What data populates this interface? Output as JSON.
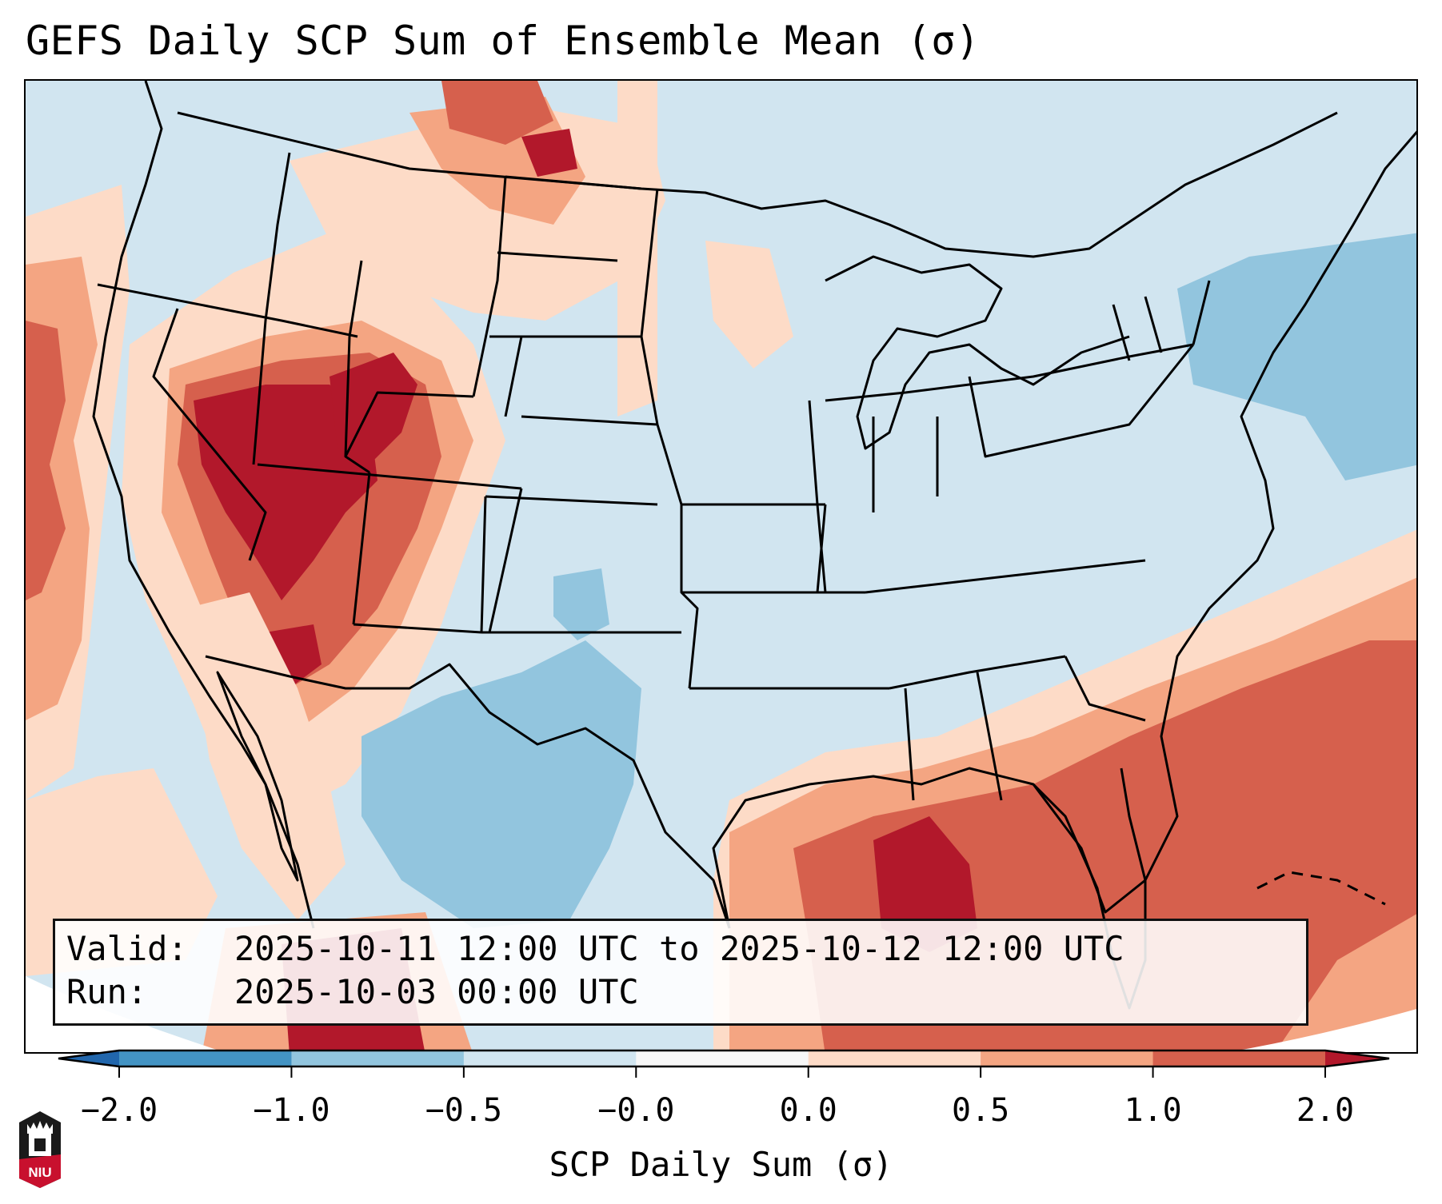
{
  "title": "GEFS Daily SCP Sum of Ensemble Mean (σ)",
  "info": {
    "valid_key": "Valid:",
    "valid_value": "2025-10-11 12:00 UTC to 2025-10-12 12:00 UTC",
    "run_key": "Run:",
    "run_value": "2025-10-03 00:00 UTC"
  },
  "colorbar": {
    "label": "SCP Daily Sum (σ)",
    "ticks": [
      "-2.0",
      "-1.0",
      "-0.5",
      "-0.0",
      "0.0",
      "0.5",
      "1.0",
      "2.0"
    ],
    "extend": "both",
    "colors": {
      "under": "#2166ac",
      "bins": [
        "#4393c3",
        "#92c5de",
        "#d1e5f0",
        "#f7f7f7",
        "#fddbc7",
        "#f4a582",
        "#d6604d"
      ],
      "over": "#b2182b"
    }
  },
  "logo": {
    "text": "NIU"
  },
  "map": {
    "region": "Continental United States",
    "variable": "Supercell Composite Parameter daily sum standardized anomaly",
    "highlights": [
      {
        "area": "Nevada / Utah / Arizona",
        "category": "> 1.0 σ"
      },
      {
        "area": "Gulf of Mexico",
        "category": "> 1.0 σ"
      },
      {
        "area": "Western Atlantic",
        "category": "0.5 to 1.0 σ"
      },
      {
        "area": "Northern Mexico / South Texas",
        "category": "-1.0 to -0.5 σ"
      }
    ]
  }
}
